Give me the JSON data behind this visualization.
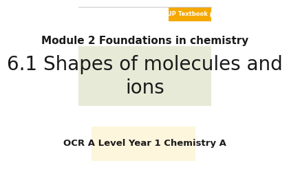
{
  "bg_color": "#ffffff",
  "border_color": "#cccccc",
  "module_text": "Module 2 Foundations in chemistry",
  "module_fontsize": 11,
  "module_fontstyle": "bold",
  "module_color": "#1a1a1a",
  "title_text": "6.1 Shapes of molecules and\nions",
  "title_fontsize": 20,
  "title_color": "#1a1a1a",
  "title_bg_color": "#e8ead8",
  "subtitle_text": "OCR A Level Year 1 Chemistry A",
  "subtitle_fontsize": 9.5,
  "subtitle_color": "#1a1a1a",
  "subtitle_bg_color": "#fdf5dc",
  "oup_text": "OUP Textbook pa",
  "oup_bg_color": "#f5a800",
  "oup_fontsize": 6,
  "oup_color": "#ffffff"
}
